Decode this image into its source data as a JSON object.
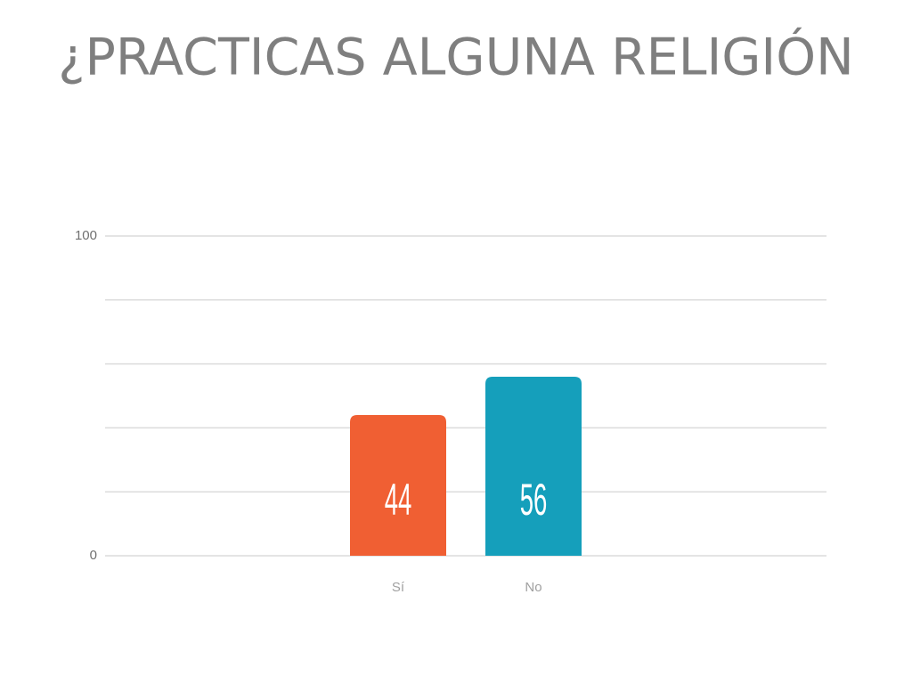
{
  "chart_data": {
    "type": "bar",
    "title": "¿PRACTICAS ALGUNA RELIGIÓN",
    "categories": [
      "Sí",
      "No"
    ],
    "values": [
      44,
      56
    ],
    "colors": [
      "#f05f33",
      "#159fbb"
    ],
    "ylim": [
      0,
      100
    ],
    "yticks": [
      0,
      100
    ],
    "minor_yticks": [
      20,
      40,
      60,
      80
    ],
    "grid": true,
    "data_labels": true
  }
}
